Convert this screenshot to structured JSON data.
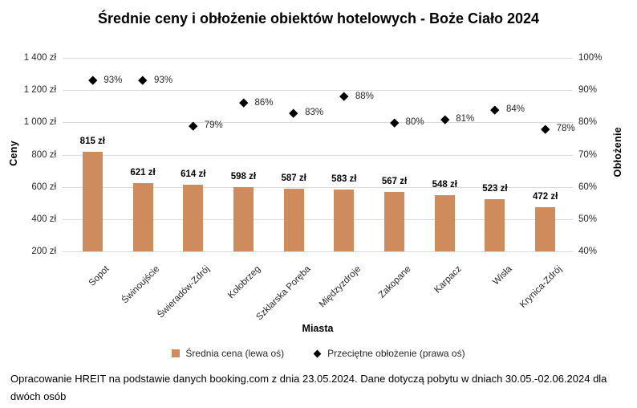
{
  "title": "Średnie ceny i obłożenie obiektów hotelowych - Boże Ciało 2024",
  "chart_data": {
    "type": "bar",
    "subtype": "combo: column series (left axis) + diamond scatter series (right axis)",
    "categories": [
      "Sopot",
      "Świnoujście",
      "Świeradów-Zdrój",
      "Kołobrzeg",
      "Szklarska Poręba",
      "Międzyzdroje",
      "Zakopane",
      "Karpacz",
      "Wisła",
      "Krynica-Zdrój"
    ],
    "series": [
      {
        "name": "Średnia cena (lewa oś)",
        "type": "bar",
        "axis": "left",
        "unit": "zł",
        "color": "#CE8C5D",
        "values": [
          815,
          621,
          614,
          598,
          587,
          583,
          567,
          548,
          523,
          472
        ],
        "labels": [
          "815 zł",
          "621 zł",
          "614 zł",
          "598 zł",
          "587 zł",
          "583 zł",
          "567 zł",
          "548 zł",
          "523 zł",
          "472 zł"
        ]
      },
      {
        "name": "Przeciętne obłożenie (prawa oś)",
        "type": "scatter",
        "marker": "diamond",
        "axis": "right",
        "unit": "%",
        "color": "#000000",
        "values": [
          93,
          93,
          79,
          86,
          83,
          88,
          80,
          81,
          84,
          78
        ],
        "labels": [
          "93%",
          "93%",
          "79%",
          "86%",
          "83%",
          "88%",
          "80%",
          "81%",
          "84%",
          "78%"
        ]
      }
    ],
    "xlabel": "Miasta",
    "ylabel_left": "Ceny",
    "ylabel_right": "Obłożenie",
    "left_axis": {
      "min": 200,
      "max": 1400,
      "step": 200,
      "tick_labels": [
        "200 zł",
        "400 zł",
        "600 zł",
        "800 zł",
        "1 000 zł",
        "1 200 zł",
        "1 400 zł"
      ]
    },
    "right_axis": {
      "min": 40,
      "max": 100,
      "step": 10,
      "tick_labels": [
        "40%",
        "50%",
        "60%",
        "70%",
        "80%",
        "90%",
        "100%"
      ]
    },
    "grid": true,
    "gridline_color": "#D9D9D9",
    "legend_position": "bottom"
  },
  "footer": "Opracowanie HREIT na podstawie danych booking.com z dnia 23.05.2024. Dane dotyczą pobytu w dniach 30.05.-02.06.2024 dla dwóch osób"
}
